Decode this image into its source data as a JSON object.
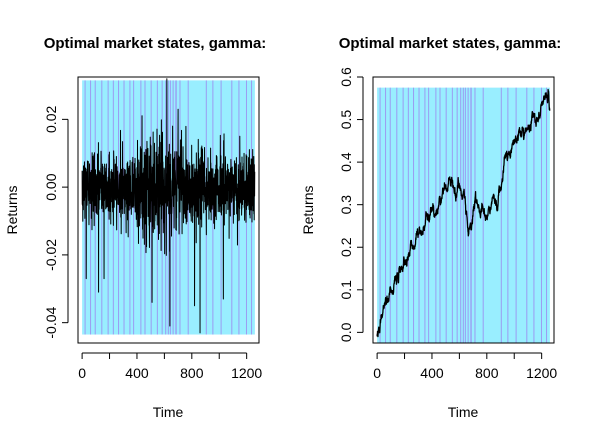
{
  "colors": {
    "background": "#ffffff",
    "regime_calm": "#99eeff",
    "regime_turbulent": "#9b9bf2",
    "series": "#000000",
    "axis": "#000000"
  },
  "chart_data": [
    {
      "type": "line",
      "title": "Optimal market states, gamma:",
      "xlabel": "Time",
      "ylabel": "Returns",
      "xlim": [
        -30,
        1290
      ],
      "ylim": [
        -0.046,
        0.0325
      ],
      "xticks": [
        0,
        400,
        800,
        1200
      ],
      "xtick_labels": [
        "0",
        "400",
        "800",
        "1200"
      ],
      "yticks": [
        -0.04,
        -0.02,
        0.0,
        0.02
      ],
      "ytick_labels": [
        "-0.04",
        "-0.02",
        "0.00",
        "0.02"
      ],
      "series": [
        {
          "kind": "daily_returns",
          "n_points": 1260,
          "anchor_points": [
            {
              "t": 30,
              "y": -0.027
            },
            {
              "t": 120,
              "y": -0.031
            },
            {
              "t": 160,
              "y": -0.027
            },
            {
              "t": 510,
              "y": -0.034
            },
            {
              "t": 618,
              "y": 0.032
            },
            {
              "t": 640,
              "y": -0.041
            },
            {
              "t": 660,
              "y": 0.018
            },
            {
              "t": 700,
              "y": 0.023
            },
            {
              "t": 820,
              "y": -0.035
            },
            {
              "t": 860,
              "y": -0.043
            },
            {
              "t": 1030,
              "y": -0.033
            },
            {
              "t": 1260,
              "y": -0.038
            }
          ]
        }
      ],
      "regime_band": {
        "ymin": -0.0435,
        "ymax": 0.0315
      }
    },
    {
      "type": "line",
      "title": "Optimal market states, gamma:",
      "xlabel": "Time",
      "ylabel": "Returns",
      "xlim": [
        -30,
        1290
      ],
      "ylim": [
        -0.025,
        0.6
      ],
      "xticks": [
        0,
        400,
        800,
        1200
      ],
      "xtick_labels": [
        "0",
        "400",
        "800",
        "1200"
      ],
      "yticks": [
        0.0,
        0.1,
        0.2,
        0.3,
        0.4,
        0.5,
        0.6
      ],
      "ytick_labels": [
        "0.0",
        "0.1",
        "0.2",
        "0.3",
        "0.4",
        "0.5",
        "0.6"
      ],
      "series": [
        {
          "kind": "cumulative_returns",
          "n_points": 1260,
          "key_points": [
            {
              "t": 0,
              "y": -0.01
            },
            {
              "t": 60,
              "y": 0.06
            },
            {
              "t": 110,
              "y": 0.11
            },
            {
              "t": 200,
              "y": 0.17
            },
            {
              "t": 300,
              "y": 0.23
            },
            {
              "t": 370,
              "y": 0.27
            },
            {
              "t": 420,
              "y": 0.29
            },
            {
              "t": 470,
              "y": 0.31
            },
            {
              "t": 530,
              "y": 0.36
            },
            {
              "t": 580,
              "y": 0.34
            },
            {
              "t": 600,
              "y": 0.34
            },
            {
              "t": 640,
              "y": 0.3
            },
            {
              "t": 665,
              "y": 0.23
            },
            {
              "t": 700,
              "y": 0.28
            },
            {
              "t": 740,
              "y": 0.3
            },
            {
              "t": 790,
              "y": 0.26
            },
            {
              "t": 830,
              "y": 0.29
            },
            {
              "t": 880,
              "y": 0.33
            },
            {
              "t": 930,
              "y": 0.4
            },
            {
              "t": 1000,
              "y": 0.44
            },
            {
              "t": 1040,
              "y": 0.47
            },
            {
              "t": 1090,
              "y": 0.48
            },
            {
              "t": 1150,
              "y": 0.51
            },
            {
              "t": 1200,
              "y": 0.53
            },
            {
              "t": 1240,
              "y": 0.56
            },
            {
              "t": 1250,
              "y": 0.57
            },
            {
              "t": 1260,
              "y": 0.5
            }
          ]
        }
      ],
      "regime_band": {
        "ymin": -0.025,
        "ymax": 0.575
      }
    }
  ],
  "regimes": {
    "n": 1260,
    "turbulent_intervals": [
      [
        18,
        24
      ],
      [
        58,
        61
      ],
      [
        92,
        96
      ],
      [
        140,
        143
      ],
      [
        186,
        190
      ],
      [
        224,
        227
      ],
      [
        262,
        266
      ],
      [
        302,
        305
      ],
      [
        345,
        348
      ],
      [
        372,
        378
      ],
      [
        425,
        430
      ],
      [
        455,
        459
      ],
      [
        500,
        506
      ],
      [
        545,
        552
      ],
      [
        580,
        584
      ],
      [
        606,
        612
      ],
      [
        625,
        629
      ],
      [
        640,
        646
      ],
      [
        660,
        664
      ],
      [
        680,
        690
      ],
      [
        710,
        713
      ],
      [
        770,
        774
      ],
      [
        902,
        906
      ],
      [
        950,
        954
      ],
      [
        1010,
        1014
      ],
      [
        1088,
        1092
      ],
      [
        1140,
        1144
      ],
      [
        1195,
        1199
      ],
      [
        1232,
        1236
      ]
    ]
  }
}
